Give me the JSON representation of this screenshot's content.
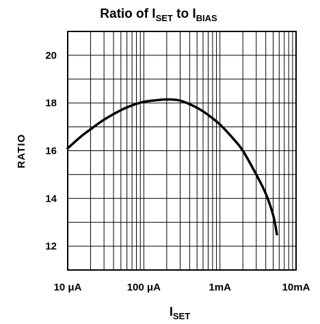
{
  "chart_data": {
    "type": "line",
    "title": "Ratio of I",
    "title_sub": "SET",
    "title_mid": " to I",
    "title_sub2": "BIAS",
    "xlabel": "I",
    "xlabel_sub": "SET",
    "ylabel": "RATIO",
    "x_scale": "log",
    "xlim": [
      1e-05,
      0.01
    ],
    "ylim": [
      11,
      21
    ],
    "grid": true,
    "x_ticks": [
      {
        "value": 1e-05,
        "label": "10 μA"
      },
      {
        "value": 0.0001,
        "label": "100 μA"
      },
      {
        "value": 0.001,
        "label": "1mA"
      },
      {
        "value": 0.01,
        "label": "10mA"
      }
    ],
    "y_ticks": [
      {
        "value": 12,
        "label": "12"
      },
      {
        "value": 14,
        "label": "14"
      },
      {
        "value": 16,
        "label": "16"
      },
      {
        "value": 18,
        "label": "18"
      },
      {
        "value": 20,
        "label": "20"
      }
    ],
    "series": [
      {
        "x": [
          1e-05,
          1.5e-05,
          2e-05,
          3e-05,
          5e-05,
          7e-05,
          0.0001,
          0.00015,
          0.0002,
          0.0003,
          0.0005,
          0.0007,
          0.001,
          0.0015,
          0.002,
          0.003,
          0.004,
          0.005,
          0.0056
        ],
        "y": [
          16.1,
          16.6,
          16.9,
          17.3,
          17.7,
          17.9,
          18.05,
          18.12,
          18.15,
          18.1,
          17.8,
          17.5,
          17.1,
          16.5,
          16.0,
          15.0,
          14.2,
          13.3,
          12.5
        ]
      }
    ]
  }
}
